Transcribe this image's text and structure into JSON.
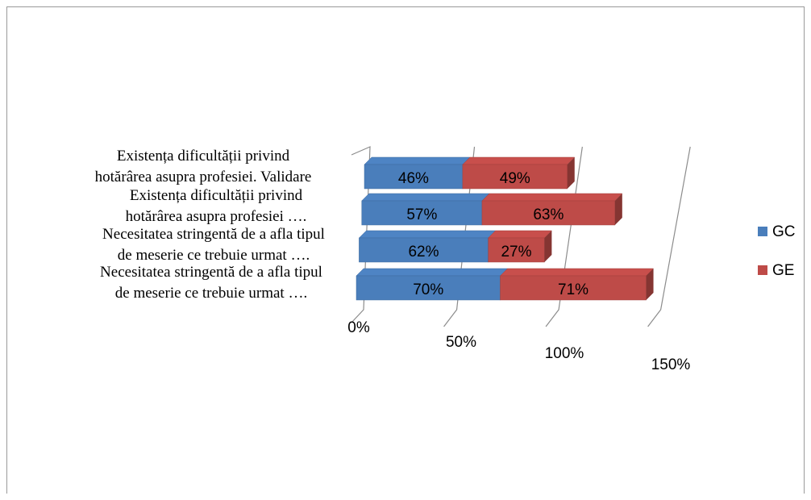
{
  "chart_data": {
    "type": "bar",
    "orientation": "horizontal",
    "stacked": true,
    "style": "3d",
    "categories": [
      [
        "Existența dificultății privind",
        "hotărârea asupra profesiei. Validare"
      ],
      [
        "Existența dificultății privind",
        "hotărârea asupra profesiei  …."
      ],
      [
        "Necesitatea stringentă de a afla tipul",
        "de meserie ce trebuie urmat …."
      ],
      [
        "Necesitatea stringentă de a afla tipul",
        "de meserie ce trebuie urmat  …."
      ]
    ],
    "series": [
      {
        "name": "GC",
        "color": "#4a7ebb",
        "values": [
          0.46,
          0.57,
          0.62,
          0.7
        ],
        "labels": [
          "46%",
          "57%",
          "62%",
          "70%"
        ]
      },
      {
        "name": "GE",
        "color": "#be4b48",
        "values": [
          0.49,
          0.63,
          0.27,
          0.71
        ],
        "labels": [
          "49%",
          "63%",
          "27%",
          "71%"
        ]
      }
    ],
    "xlim": [
      0,
      1.5
    ],
    "xticks": [
      0,
      0.5,
      1.0,
      1.5
    ],
    "xtick_labels": [
      "0%",
      "50%",
      "100%",
      "150%"
    ],
    "legend": "right",
    "grid": true
  }
}
